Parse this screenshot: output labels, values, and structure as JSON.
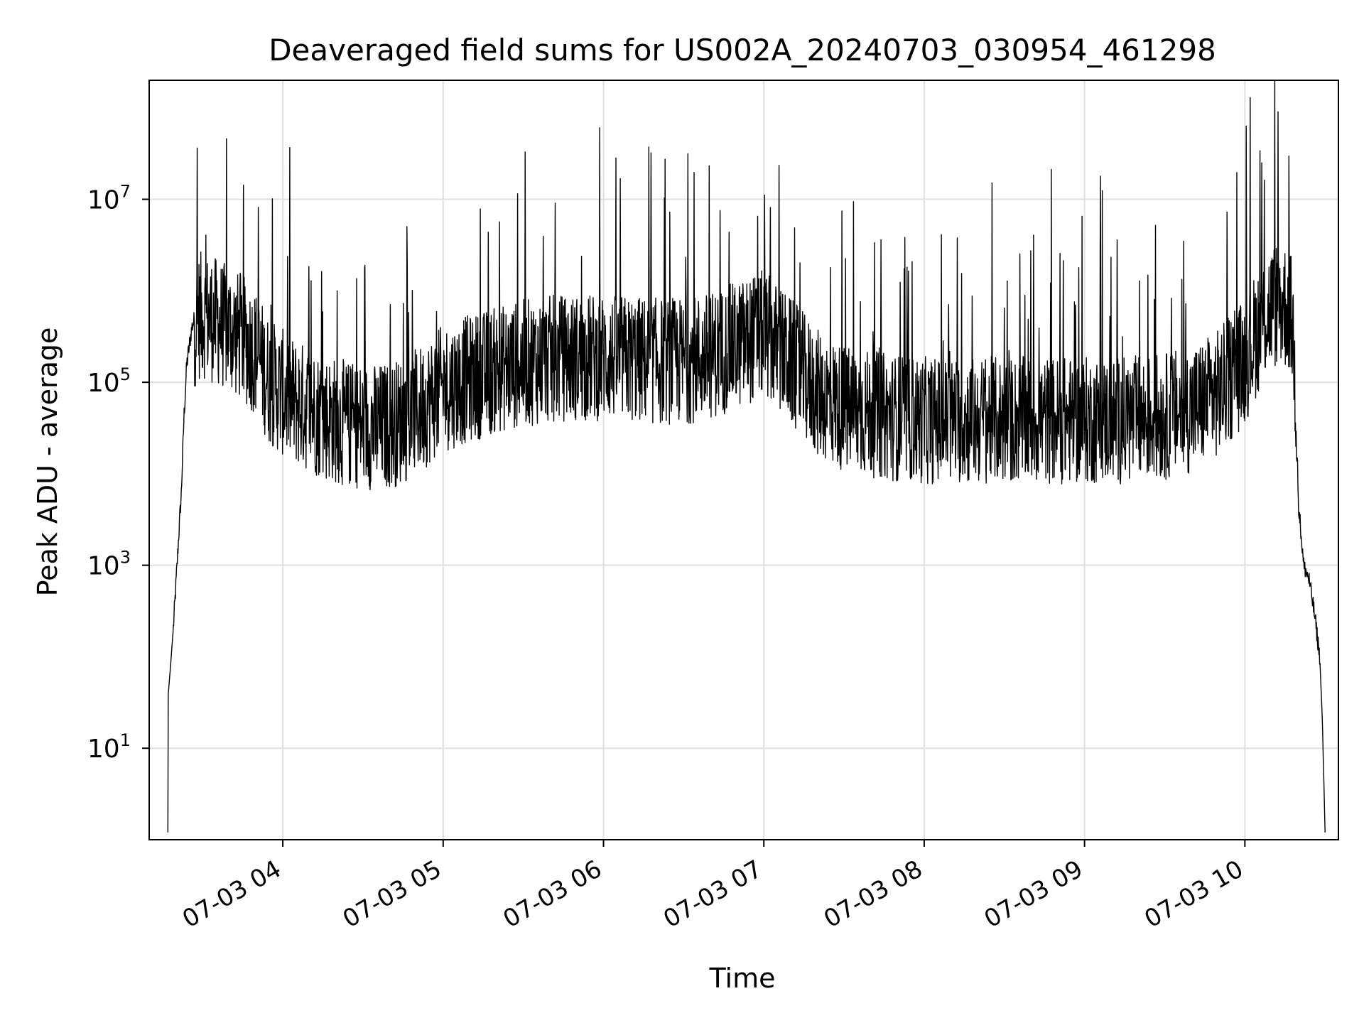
{
  "chart_data": {
    "type": "line",
    "title": "Deaveraged field sums for US002A_20240703_030954_461298",
    "xlabel": "Time",
    "ylabel": "Peak ADU - average",
    "x_axis": {
      "type": "time",
      "range": [
        "2024-07-03 03:10",
        "2024-07-03 10:35"
      ],
      "ticks": [
        {
          "value": "2024-07-03 04:00",
          "label": "07-03 04"
        },
        {
          "value": "2024-07-03 05:00",
          "label": "07-03 05"
        },
        {
          "value": "2024-07-03 06:00",
          "label": "07-03 06"
        },
        {
          "value": "2024-07-03 07:00",
          "label": "07-03 07"
        },
        {
          "value": "2024-07-03 08:00",
          "label": "07-03 08"
        },
        {
          "value": "2024-07-03 09:00",
          "label": "07-03 09"
        },
        {
          "value": "2024-07-03 10:00",
          "label": "07-03 10"
        }
      ],
      "tick_label_rotation_deg": 30
    },
    "y_axis": {
      "scale": "log",
      "range": [
        1,
        200000000
      ],
      "ticks": [
        {
          "value": 10,
          "base": "10",
          "exp": "1"
        },
        {
          "value": 1000,
          "base": "10",
          "exp": "3"
        },
        {
          "value": 100000,
          "base": "10",
          "exp": "5"
        },
        {
          "value": 10000000,
          "base": "10",
          "exp": "7"
        }
      ]
    },
    "grid": true,
    "legend": "none",
    "line_color": "#000000",
    "series": [
      {
        "x": [
          "2024-07-03 03:17",
          "2024-07-03 03:17",
          "2024-07-03 03:18",
          "2024-07-03 03:19",
          "2024-07-03 03:20",
          "2024-07-03 03:21",
          "2024-07-03 03:22",
          "2024-07-03 03:23",
          "2024-07-03 03:24",
          "2024-07-03 03:25",
          "2024-07-03 03:26",
          "2024-07-03 03:27",
          "2024-07-03 03:28",
          "2024-07-03 03:30",
          "2024-07-03 03:32",
          "2024-07-03 03:35",
          "2024-07-03 03:37",
          "2024-07-03 03:40",
          "2024-07-03 03:45",
          "2024-07-03 03:50",
          "2024-07-03 03:55",
          "2024-07-03 04:00",
          "2024-07-03 04:05",
          "2024-07-03 04:10",
          "2024-07-03 04:15",
          "2024-07-03 04:20",
          "2024-07-03 04:25",
          "2024-07-03 04:30",
          "2024-07-03 04:35",
          "2024-07-03 04:40",
          "2024-07-03 04:45",
          "2024-07-03 04:50",
          "2024-07-03 04:55",
          "2024-07-03 05:00",
          "2024-07-03 05:10",
          "2024-07-03 05:20",
          "2024-07-03 05:30",
          "2024-07-03 05:40",
          "2024-07-03 05:50",
          "2024-07-03 06:00",
          "2024-07-03 06:10",
          "2024-07-03 06:20",
          "2024-07-03 06:30",
          "2024-07-03 06:40",
          "2024-07-03 06:50",
          "2024-07-03 07:00",
          "2024-07-03 07:10",
          "2024-07-03 07:20",
          "2024-07-03 07:30",
          "2024-07-03 07:45",
          "2024-07-03 08:00",
          "2024-07-03 08:15",
          "2024-07-03 08:30",
          "2024-07-03 08:45",
          "2024-07-03 09:00",
          "2024-07-03 09:15",
          "2024-07-03 09:30",
          "2024-07-03 09:40",
          "2024-07-03 09:50",
          "2024-07-03 10:00",
          "2024-07-03 10:05",
          "2024-07-03 10:10",
          "2024-07-03 10:14",
          "2024-07-03 10:17",
          "2024-07-03 10:18",
          "2024-07-03 10:19",
          "2024-07-03 10:20",
          "2024-07-03 10:22",
          "2024-07-03 10:24",
          "2024-07-03 10:26",
          "2024-07-03 10:28",
          "2024-07-03 10:29",
          "2024-07-03 10:30"
        ],
        "y": [
          1.2,
          35,
          80,
          200,
          600,
          2000,
          6000,
          40000,
          150000,
          250000,
          400000,
          500000,
          600000,
          650000,
          600000,
          550000,
          500000,
          450000,
          350000,
          250000,
          120000,
          90000,
          70000,
          60000,
          50000,
          45000,
          40000,
          40000,
          38000,
          40000,
          45000,
          55000,
          75000,
          100000,
          130000,
          160000,
          190000,
          210000,
          220000,
          220000,
          210000,
          200000,
          200000,
          230000,
          300000,
          400000,
          200000,
          90000,
          60000,
          50000,
          45000,
          45000,
          45000,
          45000,
          45000,
          45000,
          50000,
          60000,
          90000,
          200000,
          450000,
          800000,
          850000,
          700000,
          400000,
          100000,
          5000,
          1000,
          700,
          300,
          100,
          20,
          1.2
        ]
      }
    ]
  }
}
